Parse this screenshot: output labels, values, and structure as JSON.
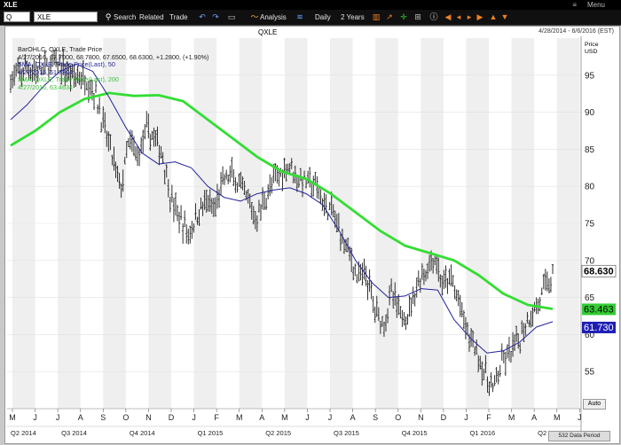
{
  "window": {
    "title": "XLE",
    "menu_label": "Menu"
  },
  "toolbar": {
    "search_type": "Q",
    "symbol": "XLE",
    "search_label": "Search",
    "related_label": "Related",
    "trade_label": "Trade",
    "analysis_label": "Analysis",
    "interval_label": "Daily",
    "range_label": "2 Years"
  },
  "chart_header": {
    "title": "QXLE",
    "date_range": "4/28/2014 - 6/6/2016 (EST)",
    "unit_line1": "Price",
    "unit_line2": "USD"
  },
  "legend": {
    "ohlc_name": "BarOHLC, QXLE, Trade Price",
    "ohlc_values": "4/27/2016, 67.7000, 68.7800, 67.6500, 68.6300, +1.2800, (+1.90%)",
    "sma50_name": "SMA, QXLE, Trade Price(Last), 50",
    "sma50_values": "4/27/2016, 61.7304",
    "sma200_name": "SMA, QXLE, Trade Price(Last), 200",
    "sma200_values": "4/27/2016, 63.4634"
  },
  "price_tags": {
    "last": "68.630",
    "sma200": "63.463",
    "sma50": "61.730"
  },
  "controls": {
    "auto_label": "Auto",
    "data_period_label": "532 Data Period"
  },
  "colors": {
    "ohlc": "#1a1a1a",
    "sma50": "#23239a",
    "sma200": "#33dd33",
    "band": "#efefef",
    "last_tag": "#ffffff",
    "sma200_tag": "#33cc33",
    "sma50_tag": "#1e1eb4"
  },
  "chart_data": {
    "type": "line",
    "title": "QXLE",
    "ylabel": "Price USD",
    "ylim": [
      50,
      100
    ],
    "y_ticks": [
      55,
      60,
      65,
      70,
      75,
      80,
      85,
      90,
      95
    ],
    "month_labels": [
      "M",
      "J",
      "J",
      "A",
      "S",
      "O",
      "N",
      "D",
      "J",
      "F",
      "M",
      "A",
      "M",
      "J",
      "J",
      "A",
      "S",
      "O",
      "N",
      "D",
      "J",
      "F",
      "M",
      "A",
      "M",
      "J"
    ],
    "quarter_labels": [
      "Q2 2014",
      "Q3 2014",
      "Q4 2014",
      "Q1 2015",
      "Q2 2015",
      "Q3 2015",
      "Q4 2015",
      "Q1 2016",
      "Q2 2016"
    ],
    "series": [
      {
        "name": "BarOHLC, QXLE, Trade Price",
        "close": [
          94.5,
          95.0,
          96.0,
          95.5,
          95.8,
          96.5,
          96.2,
          95.0,
          94.8,
          94.5,
          92.5,
          88.0,
          84.0,
          79.5,
          86.0,
          84.0,
          87.5,
          86.5,
          84.0,
          78.0,
          75.5,
          73.5,
          76.0,
          78.0,
          76.5,
          80.5,
          81.5,
          80.0,
          78.0,
          75.5,
          78.5,
          80.5,
          82.0,
          83.0,
          81.0,
          80.5,
          80.0,
          77.5,
          76.5,
          73.5,
          71.0,
          67.5,
          68.0,
          63.5,
          61.5,
          65.5,
          62.5,
          63.0,
          67.0,
          68.5,
          70.5,
          66.5,
          67.5,
          64.0,
          60.0,
          58.0,
          54.5,
          52.5,
          56.0,
          57.5,
          59.0,
          62.0,
          63.5,
          66.0,
          68.0
        ]
      },
      {
        "name": "SMA, QXLE, Trade Price(Last), 50",
        "values": [
          89.0,
          91.0,
          93.5,
          95.5,
          96.5,
          95.5,
          92.0,
          88.0,
          84.5,
          83.0,
          83.3,
          82.5,
          80.0,
          78.5,
          78.0,
          79.0,
          79.5,
          79.8,
          79.0,
          77.5,
          74.0,
          70.0,
          67.0,
          65.0,
          65.2,
          66.2,
          66.0,
          62.0,
          59.5,
          57.5,
          57.8,
          59.0,
          61.0,
          61.73
        ]
      },
      {
        "name": "SMA, QXLE, Trade Price(Last), 200",
        "values": [
          85.5,
          87.5,
          90.0,
          91.8,
          92.6,
          92.2,
          92.3,
          91.5,
          89.0,
          86.5,
          84.0,
          82.0,
          81.0,
          79.0,
          76.5,
          74.0,
          72.0,
          71.0,
          70.0,
          68.0,
          65.5,
          64.0,
          63.46
        ]
      }
    ]
  }
}
